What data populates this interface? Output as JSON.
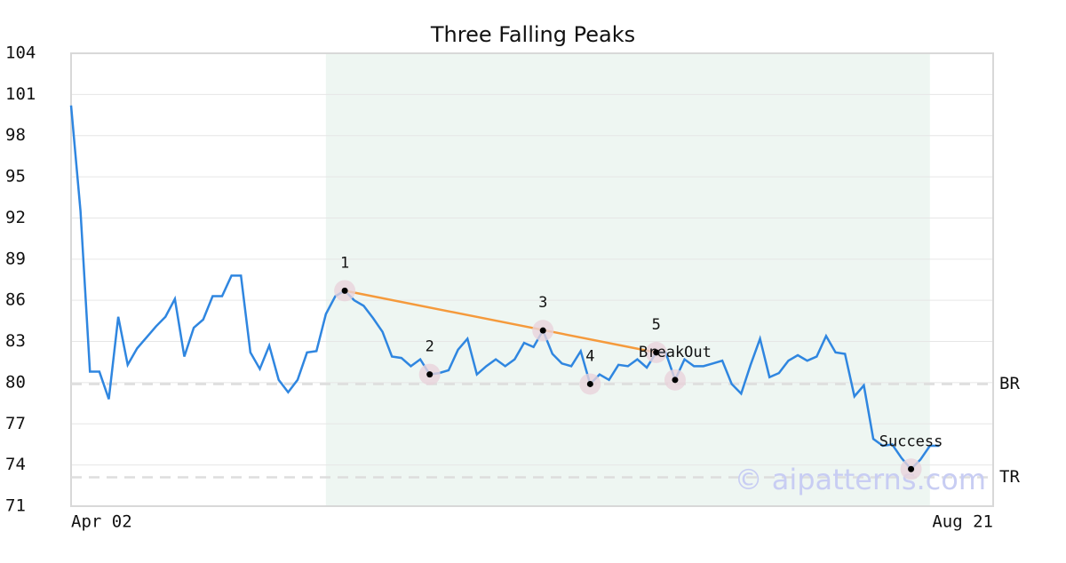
{
  "chart_data": {
    "type": "line",
    "title": "Three Falling Peaks",
    "x": [
      0,
      1,
      2,
      3,
      4,
      5,
      6,
      7,
      8,
      9,
      10,
      11,
      12,
      13,
      14,
      15,
      16,
      17,
      18,
      19,
      20,
      21,
      22,
      23,
      24,
      25,
      26,
      27,
      28,
      29,
      30,
      31,
      32,
      33,
      34,
      35,
      36,
      37,
      38,
      39,
      40,
      41,
      42,
      43,
      44,
      45,
      46,
      47,
      48,
      49,
      50,
      51,
      52,
      53,
      54,
      55,
      56,
      57,
      58,
      59,
      60,
      61,
      62,
      63,
      64,
      65,
      66,
      67,
      68,
      69,
      70,
      71,
      72,
      73,
      74,
      75,
      76,
      77,
      78,
      79,
      80,
      81,
      82,
      83,
      84,
      85,
      86,
      87,
      88,
      89,
      90,
      91,
      92
    ],
    "series": [
      {
        "name": "Price",
        "color": "#2f86e0",
        "values": [
          100.2,
          92.5,
          80.8,
          80.8,
          78.8,
          84.8,
          81.3,
          82.5,
          83.3,
          84.1,
          84.8,
          86.1,
          81.9,
          84.0,
          84.6,
          86.3,
          86.3,
          87.8,
          87.8,
          82.2,
          81.0,
          82.7,
          80.2,
          79.3,
          80.2,
          82.2,
          82.3,
          85.0,
          86.3,
          86.7,
          86.0,
          85.6,
          84.7,
          83.7,
          81.9,
          81.8,
          81.2,
          81.7,
          80.6,
          80.7,
          80.9,
          82.4,
          83.2,
          80.6,
          81.2,
          81.7,
          81.2,
          81.7,
          82.9,
          82.6,
          83.8,
          82.1,
          81.4,
          81.2,
          82.3,
          79.9,
          80.6,
          80.2,
          81.3,
          81.2,
          81.7,
          81.1,
          82.2,
          82.2,
          80.2,
          81.7,
          81.2,
          81.2,
          81.4,
          81.6,
          79.9,
          79.2,
          81.3,
          83.2,
          80.4,
          80.7,
          81.6,
          82.0,
          81.6,
          81.9,
          83.4,
          82.2,
          82.1,
          79.0,
          79.8,
          75.9,
          75.4,
          75.5,
          74.5,
          73.7,
          74.4,
          75.4,
          75.4
        ]
      }
    ],
    "xlim": [
      0,
      97.7
    ],
    "xticks": [
      {
        "value": 0,
        "label": "Apr 02"
      },
      {
        "value": 97.7,
        "label": "Aug 21"
      }
    ],
    "ylim": [
      71,
      104
    ],
    "yticks": [
      71,
      74,
      77,
      80,
      83,
      86,
      89,
      92,
      95,
      98,
      101,
      104
    ],
    "grid": true,
    "pattern_range": [
      27,
      91
    ],
    "points": [
      {
        "label": "1",
        "x": 29,
        "y": 86.7
      },
      {
        "label": "2",
        "x": 38,
        "y": 80.6
      },
      {
        "label": "3",
        "x": 50,
        "y": 83.8
      },
      {
        "label": "4",
        "x": 55,
        "y": 79.9
      },
      {
        "label": "5",
        "x": 62,
        "y": 82.2
      },
      {
        "label": "BreakOut",
        "x": 64,
        "y": 80.2
      },
      {
        "label": "Success",
        "x": 89,
        "y": 73.7
      }
    ],
    "trendline": {
      "color": "#f59a3c",
      "x": [
        29,
        62
      ],
      "y": [
        86.7,
        82.2
      ]
    },
    "levels": [
      {
        "label": "BR",
        "value": 79.9
      },
      {
        "label": "TR",
        "value": 73.1
      }
    ],
    "watermark": "© aipatterns.com"
  }
}
